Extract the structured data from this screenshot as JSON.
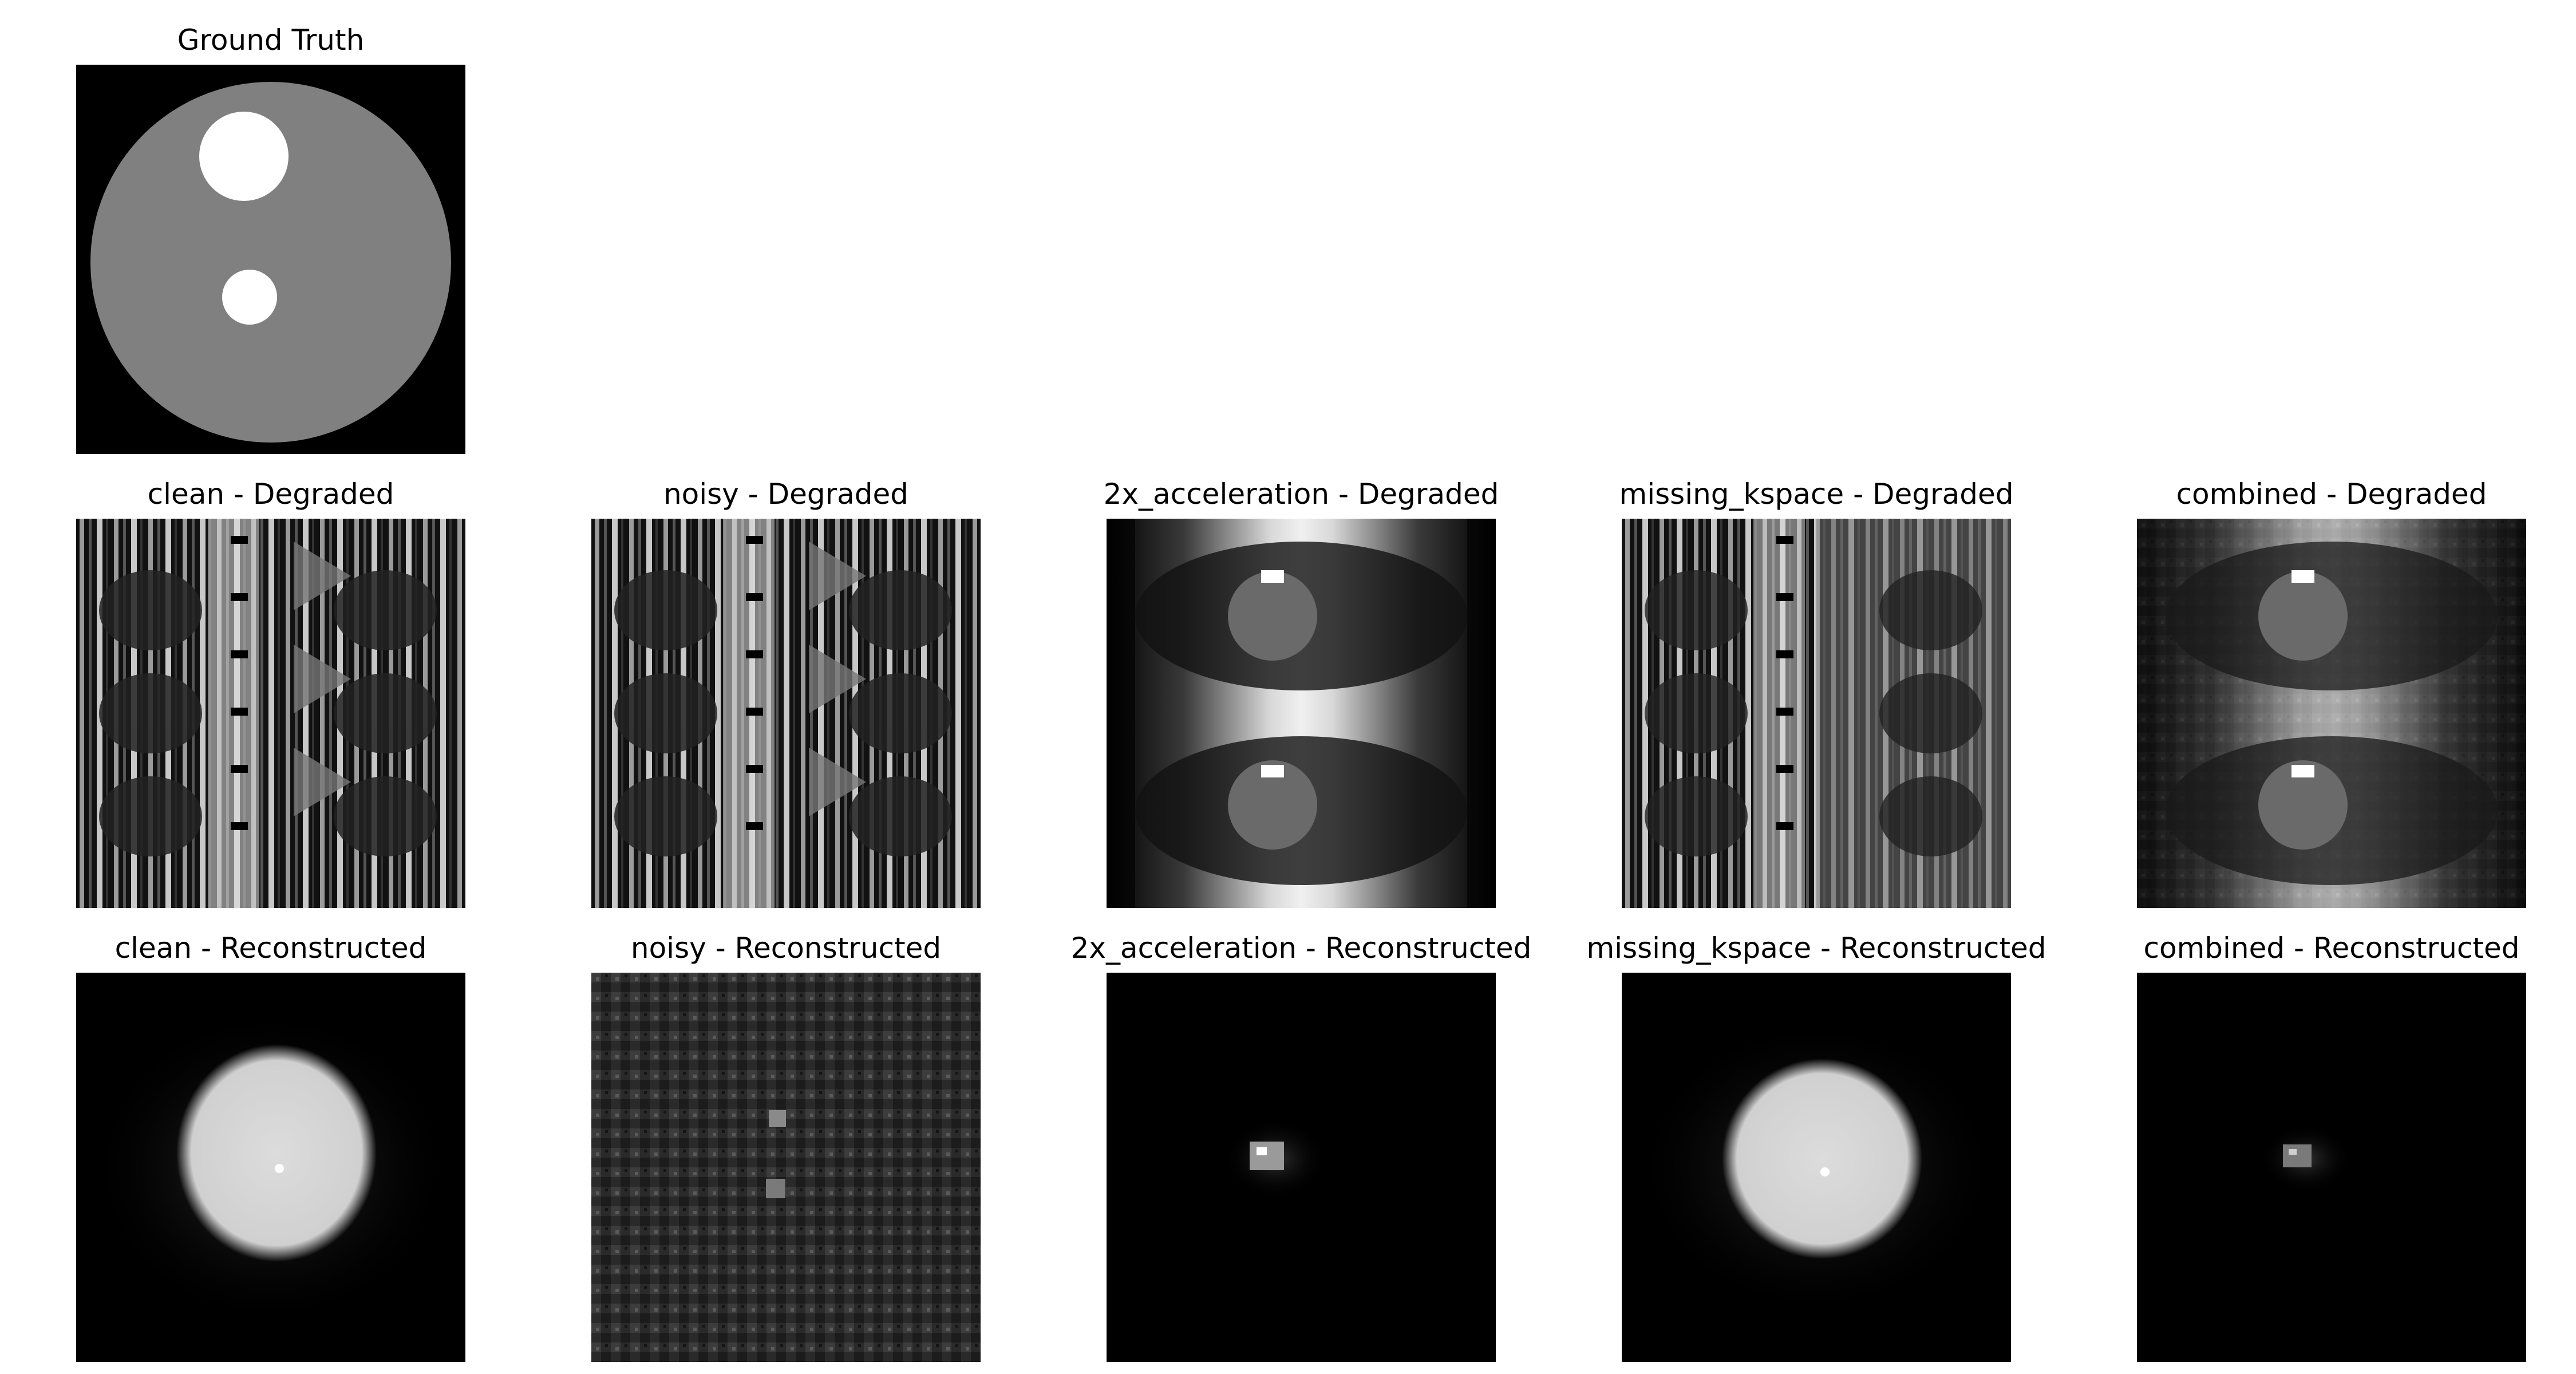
{
  "figure": {
    "ground_truth_title": "Ground Truth",
    "degraded": [
      {
        "title": "clean - Degraded"
      },
      {
        "title": "noisy - Degraded"
      },
      {
        "title": "2x_acceleration - Degraded"
      },
      {
        "title": "missing_kspace - Degraded"
      },
      {
        "title": "combined - Degraded"
      }
    ],
    "reconstructed": [
      {
        "title": "clean - Reconstructed"
      },
      {
        "title": "noisy - Reconstructed"
      },
      {
        "title": "2x_acceleration - Reconstructed"
      },
      {
        "title": "missing_kspace - Reconstructed"
      },
      {
        "title": "combined - Reconstructed"
      }
    ]
  }
}
